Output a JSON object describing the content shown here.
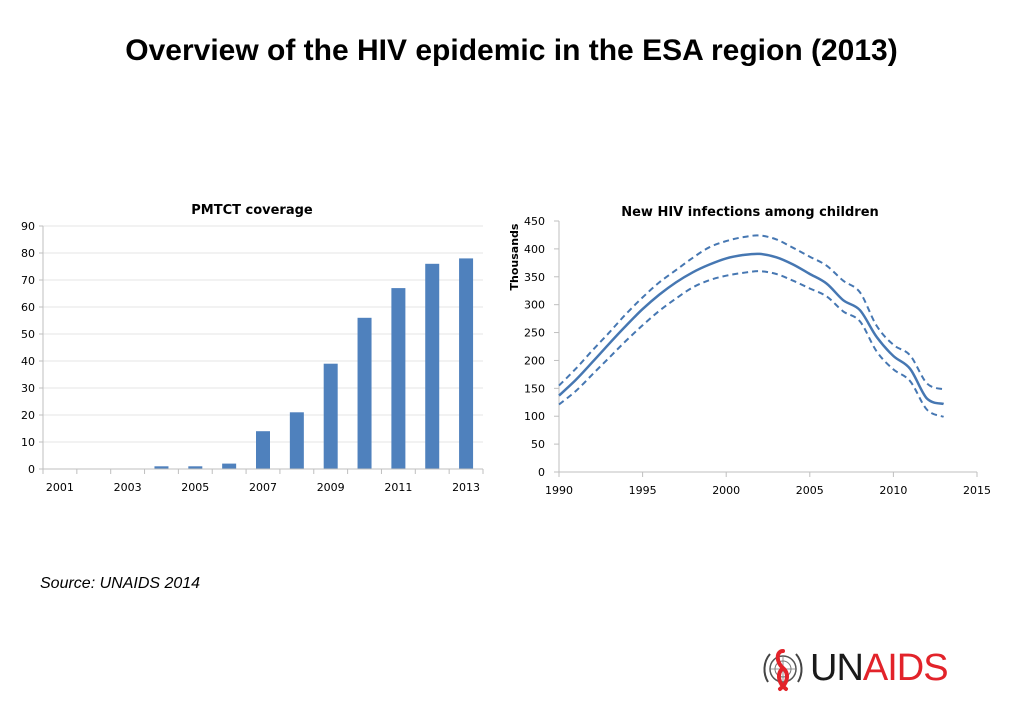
{
  "title": "Overview of the HIV epidemic in the ESA region (2013)",
  "source": "Source: UNAIDS 2014",
  "logo": {
    "text_un": "UN",
    "text_aids": "AIDS"
  },
  "colors": {
    "bar": "#4f81bd",
    "line": "#4677b2",
    "grid": "#e6e6e6",
    "axis": "#bfbfbf",
    "logo_red": "#e2232a"
  },
  "chart_data": [
    {
      "type": "bar",
      "title": "PMTCT coverage",
      "x": [
        2001,
        2002,
        2003,
        2004,
        2005,
        2006,
        2007,
        2008,
        2009,
        2010,
        2011,
        2012,
        2013
      ],
      "values": [
        0,
        0,
        0,
        1,
        1,
        2,
        14,
        21,
        39,
        56,
        67,
        76,
        78
      ],
      "x_tick_labels": [
        "2001",
        "2003",
        "2005",
        "2007",
        "2009",
        "2011",
        "2013"
      ],
      "y_ticks": [
        "0",
        "10",
        "20",
        "30",
        "40",
        "50",
        "60",
        "70",
        "80",
        "90"
      ],
      "ylim": [
        0,
        90
      ],
      "grid": true
    },
    {
      "type": "line",
      "title": "New HIV infections among children",
      "ylabel": "Thousands",
      "x_tick_labels": [
        "1990",
        "1995",
        "2000",
        "2005",
        "2010",
        "2015"
      ],
      "y_ticks": [
        "0",
        "50",
        "100",
        "150",
        "200",
        "250",
        "300",
        "350",
        "400",
        "450"
      ],
      "xlim": [
        1990,
        2015
      ],
      "ylim": [
        0,
        450
      ],
      "grid": false,
      "series": [
        {
          "style": "solid",
          "x": [
            1990,
            1991,
            1992,
            1993,
            1994,
            1995,
            1996,
            1997,
            1998,
            1999,
            2000,
            2001,
            2002,
            2003,
            2004,
            2005,
            2006,
            2007,
            2008,
            2009,
            2010,
            2011,
            2012,
            2013
          ],
          "y": [
            137,
            165,
            197,
            230,
            262,
            292,
            318,
            340,
            358,
            372,
            383,
            389,
            391,
            385,
            372,
            355,
            338,
            308,
            290,
            242,
            208,
            185,
            132,
            122
          ]
        },
        {
          "style": "dashed",
          "x": [
            1990,
            1991,
            1992,
            1993,
            1994,
            1995,
            1996,
            1997,
            1998,
            1999,
            2000,
            2001,
            2002,
            2003,
            2004,
            2005,
            2006,
            2007,
            2008,
            2009,
            2010,
            2011,
            2012,
            2013
          ],
          "y": [
            155,
            185,
            218,
            250,
            283,
            313,
            340,
            362,
            384,
            403,
            414,
            421,
            424,
            417,
            402,
            386,
            370,
            343,
            322,
            262,
            228,
            209,
            159,
            148
          ]
        },
        {
          "style": "dashed",
          "x": [
            1990,
            1991,
            1992,
            1993,
            1994,
            1995,
            1996,
            1997,
            1998,
            1999,
            2000,
            2001,
            2002,
            2003,
            2004,
            2005,
            2006,
            2007,
            2008,
            2009,
            2010,
            2011,
            2012,
            2013
          ],
          "y": [
            121,
            145,
            175,
            205,
            235,
            263,
            289,
            311,
            331,
            344,
            352,
            357,
            360,
            355,
            343,
            329,
            315,
            288,
            270,
            216,
            184,
            163,
            112,
            99
          ]
        }
      ]
    }
  ]
}
